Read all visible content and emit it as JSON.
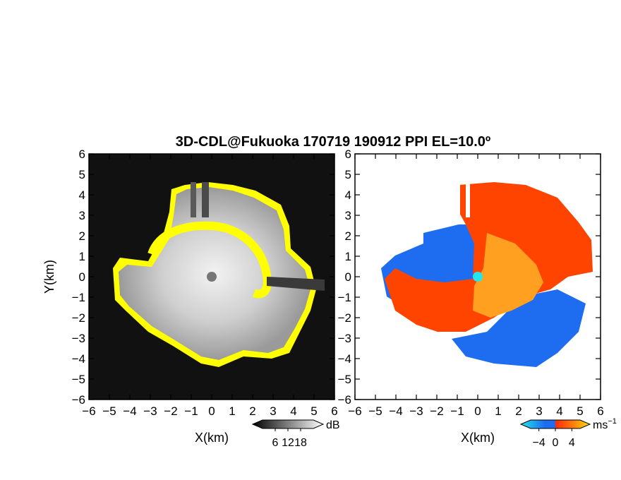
{
  "title": "3D-CDL@Fukuoka 170719 190912 PPI EL=10.0º",
  "colors": {
    "field_fill": "#111111",
    "echo_edge": "#ffff00",
    "radar_reflectivity": "#777777",
    "radar_velocity": "#22e5ee",
    "velocity_neg": "#1e6cf0",
    "velocity_pos": "#ff3a00",
    "velocity_core": "#ffa020"
  },
  "chart_data": [
    {
      "type": "heatmap",
      "name": "reflectivity",
      "title": "",
      "xlabel": "X(km)",
      "ylabel": "Y(km)",
      "xlim": [
        -6,
        6
      ],
      "ylim": [
        -6,
        6
      ],
      "xticks": [
        -6,
        -5,
        -4,
        -3,
        -2,
        -1,
        0,
        1,
        2,
        3,
        4,
        5,
        6
      ],
      "yticks": [
        -6,
        -5,
        -4,
        -3,
        -2,
        -1,
        0,
        1,
        2,
        3,
        4,
        5,
        6
      ],
      "radar_origin": [
        0,
        0
      ],
      "colorbar": {
        "unit": "dB",
        "ticks": [
          6,
          12,
          18
        ],
        "colors": [
          "#000000",
          "#ffffff"
        ]
      }
    },
    {
      "type": "heatmap",
      "name": "doppler_velocity",
      "title": "",
      "xlabel": "X(km)",
      "ylabel": "",
      "xlim": [
        -6,
        6
      ],
      "ylim": [
        -6,
        6
      ],
      "xticks": [
        -6,
        -5,
        -4,
        -3,
        -2,
        -1,
        0,
        1,
        2,
        3,
        4,
        5,
        6
      ],
      "yticks": [
        -6,
        -5,
        -4,
        -3,
        -2,
        -1,
        0,
        1,
        2,
        3,
        4,
        5,
        6
      ],
      "radar_origin": [
        0,
        0
      ],
      "colorbar": {
        "unit": "ms",
        "unit_exp": "−1",
        "ticks": [
          -4,
          0,
          4
        ],
        "colors": [
          "#22e5ee",
          "#1e6cf0",
          "#ff2a00",
          "#ffe000"
        ]
      }
    }
  ]
}
